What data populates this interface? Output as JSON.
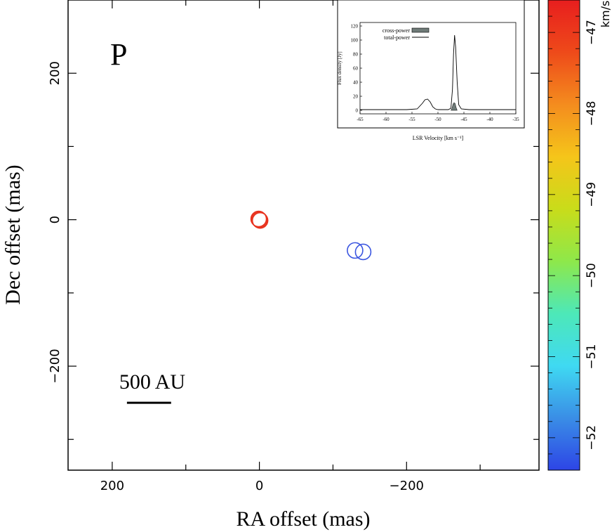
{
  "chart_data": {
    "type": "scatter",
    "panel_label": "P",
    "xlabel": "RA offset (mas)",
    "ylabel": "Dec offset (mas)",
    "xlim": [
      260,
      -380
    ],
    "ylim": [
      -342,
      300
    ],
    "x_ticks": [
      200,
      0,
      -200
    ],
    "x_tick_labels": [
      "200",
      "0",
      "−200"
    ],
    "y_ticks": [
      200,
      0,
      -200
    ],
    "y_tick_labels": [
      "200",
      "0",
      "−200"
    ],
    "x_minor_ticks": [
      100,
      -100,
      -300
    ],
    "y_minor_ticks": [
      100,
      -100,
      -300
    ],
    "scale_bar": {
      "label": "500 AU",
      "from_x": 180,
      "to_x": 120,
      "y": -250
    },
    "spots": [
      {
        "x": 1,
        "y": 1,
        "velocity": -46.6,
        "color": "#e8321e"
      },
      {
        "x": 0,
        "y": 0,
        "velocity": -46.7,
        "color": "#e8321e"
      },
      {
        "x": -1,
        "y": -1,
        "velocity": -46.8,
        "color": "#e8321e"
      },
      {
        "x": -130,
        "y": -42,
        "velocity": -52.0,
        "color": "#3a55e0"
      },
      {
        "x": -141,
        "y": -44,
        "velocity": -52.1,
        "color": "#3a55e0"
      }
    ],
    "colorbar": {
      "unit": "km/s",
      "vmin": -52.4,
      "vmax": -46.6,
      "tick_values": [
        -47,
        -48,
        -49,
        -50,
        -51,
        -52
      ],
      "tick_labels": [
        "−47",
        "−48",
        "−49",
        "−50",
        "−51",
        "−52"
      ],
      "stops": [
        "#2d45e6",
        "#3a8ee6",
        "#3fd9f2",
        "#4de8b8",
        "#8ee84a",
        "#c9dc1a",
        "#f5c51a",
        "#f48c1e",
        "#ee4a1a",
        "#e81e1e"
      ]
    },
    "inset": {
      "type": "line",
      "xlabel": "LSR Velocity [km s⁻¹]",
      "ylabel": "Flux density [Jy]",
      "xlim": [
        -65,
        -35
      ],
      "ylim": [
        -5,
        125
      ],
      "x_ticks": [
        -65,
        -60,
        -55,
        -50,
        -45,
        -40,
        -35
      ],
      "x_tick_labels": [
        "-65",
        "-60",
        "-55",
        "-50",
        "-45",
        "-40",
        "-35"
      ],
      "y_ticks": [
        0,
        20,
        40,
        60,
        80,
        100,
        120
      ],
      "y_tick_labels": [
        "0",
        "20",
        "40",
        "60",
        "80",
        "100",
        "120"
      ],
      "legend": [
        "cross-power",
        "total-power"
      ],
      "total_power": {
        "x": [
          -65,
          -60,
          -56,
          -54,
          -53,
          -52.5,
          -52,
          -51.5,
          -51,
          -50.5,
          -50,
          -48,
          -47.5,
          -47.2,
          -47,
          -46.8,
          -46.6,
          -46.3,
          -46,
          -45.5,
          -44,
          -40,
          -35
        ],
        "y": [
          1,
          1,
          1,
          2,
          10,
          15,
          16,
          12,
          5,
          2,
          1,
          1,
          3,
          30,
          80,
          107,
          90,
          40,
          8,
          2,
          1,
          1,
          1
        ]
      },
      "cross_power": {
        "x": [
          -47.5,
          -47.3,
          -47.1,
          -46.9,
          -46.7,
          -46.5,
          -46.3
        ],
        "y": [
          0,
          3,
          9,
          11,
          10,
          4,
          0
        ]
      }
    }
  }
}
